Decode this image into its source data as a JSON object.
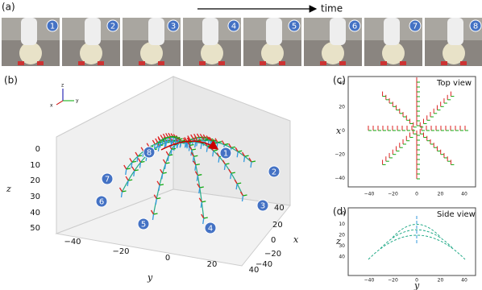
{
  "panel_a": {
    "label": "(a)",
    "time_label": "time",
    "photo_numbers": [
      "1",
      "2",
      "3",
      "4",
      "5",
      "6",
      "7",
      "8"
    ]
  },
  "panel_b": {
    "label": "(b)",
    "axis_triad": [
      "z",
      "x",
      "y"
    ],
    "z_label": "z",
    "z_ticks": [
      "0",
      "10",
      "20",
      "30",
      "40",
      "50"
    ],
    "y_label": "y",
    "y_ticks": [
      "−40",
      "−20",
      "0",
      "20",
      "40"
    ],
    "x_label": "x",
    "x_ticks": [
      "40",
      "20",
      "0",
      "−20",
      "−40"
    ],
    "markers": [
      "1",
      "2",
      "3",
      "4",
      "5",
      "6",
      "7",
      "8"
    ]
  },
  "panel_c": {
    "label": "(c)",
    "title": "Top view",
    "y_axis_label": "x",
    "y_ticks": [
      "40",
      "20",
      "0",
      "−20",
      "−40"
    ],
    "x_ticks": [
      "−40",
      "−20",
      "0",
      "20",
      "40"
    ]
  },
  "panel_d": {
    "label": "(d)",
    "title": "Side view",
    "y_axis_label": "z",
    "y_ticks": [
      "0",
      "10",
      "20",
      "30",
      "40"
    ],
    "x_ticks": [
      "−40",
      "−20",
      "0",
      "20",
      "40"
    ],
    "x_axis_label": "y"
  }
}
